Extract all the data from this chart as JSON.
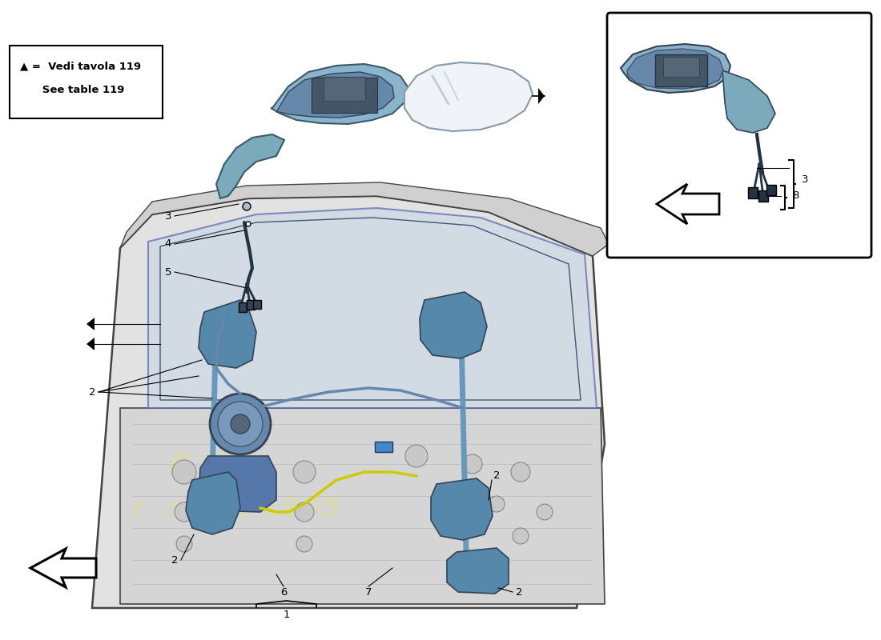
{
  "bg_color": "#ffffff",
  "legend_line1": "▲ =  Vedi tavola 119",
  "legend_line2": "      See table 119",
  "mirror_body_color": "#9bbdd4",
  "mirror_arm_color": "#7aaabb",
  "mirror_glass_color": "#ddeeff",
  "mirror_dark": "#3a5a6a",
  "door_fill": "#e8e8e8",
  "door_stroke": "#555555",
  "window_fill": "#d0dce8",
  "regulator_blue": "#6699bb",
  "regulator_dark": "#3a5566",
  "cable_color": "#7799aa",
  "wire_yellow": "#cccc00",
  "connector_blue": "#5588cc",
  "watermark_color": "#dddd88",
  "inset_bg": "#ffffff",
  "label_fontsize": 9.5
}
